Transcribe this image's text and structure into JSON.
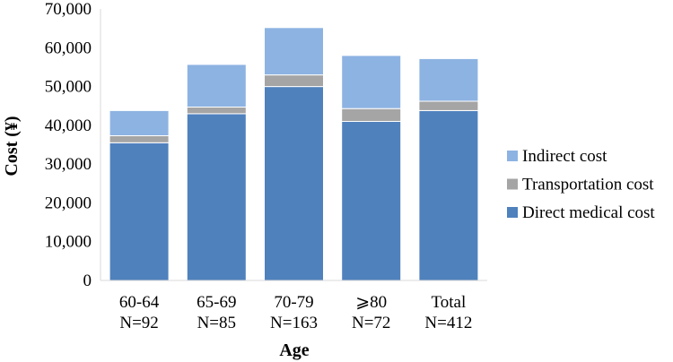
{
  "chart_data": {
    "type": "bar",
    "stacked": true,
    "xlabel": "Age",
    "ylabel": "Cost (¥)",
    "ylim": [
      0,
      70000
    ],
    "yticks": [
      "0",
      "10,000",
      "20,000",
      "30,000",
      "40,000",
      "50,000",
      "60,000",
      "70,000"
    ],
    "grid": false,
    "legend_position": "right",
    "categories": [
      {
        "line1": "60-64",
        "line2": "N=92"
      },
      {
        "line1": "65-69",
        "line2": "N=85"
      },
      {
        "line1": "70-79",
        "line2": "N=163"
      },
      {
        "line1": "⩾80",
        "line2": "N=72"
      },
      {
        "line1": "Total",
        "line2": "N=412"
      }
    ],
    "series": [
      {
        "name": "Direct medical cost",
        "color": "#4f81bd",
        "values": [
          35500,
          43000,
          50000,
          41000,
          43800
        ]
      },
      {
        "name": "Transportation cost",
        "color": "#a5a5a5",
        "values": [
          1800,
          1700,
          3000,
          3300,
          2400
        ]
      },
      {
        "name": "Indirect cost",
        "color": "#8db3e2",
        "values": [
          6500,
          11000,
          12200,
          13700,
          11000
        ]
      }
    ],
    "legend_order": [
      2,
      1,
      0
    ]
  }
}
